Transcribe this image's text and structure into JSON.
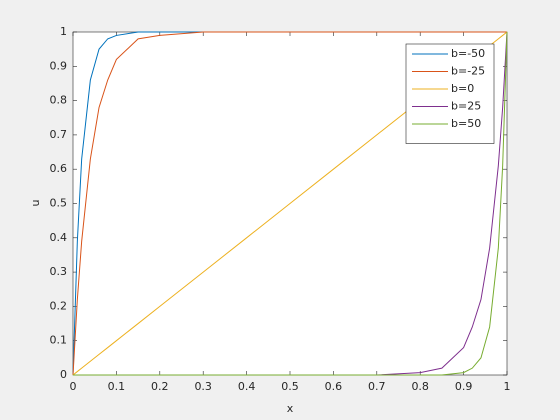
{
  "chart_data": {
    "type": "line",
    "xlabel": "x",
    "ylabel": "u",
    "x": [
      0,
      0.01,
      0.02,
      0.04,
      0.06,
      0.08,
      0.1,
      0.15,
      0.2,
      0.3,
      0.4,
      0.5,
      0.6,
      0.7,
      0.8,
      0.85,
      0.9,
      0.92,
      0.94,
      0.96,
      0.98,
      0.99,
      1
    ],
    "series": [
      {
        "name": "b=-50",
        "color": "#0072bd",
        "values": [
          0,
          0.39,
          0.63,
          0.86,
          0.95,
          0.98,
          0.99,
          1,
          1,
          1,
          1,
          1,
          1,
          1,
          1,
          1,
          1,
          1,
          1,
          1,
          1,
          1,
          1
        ]
      },
      {
        "name": "b=-25",
        "color": "#d95319",
        "values": [
          0,
          0.22,
          0.39,
          0.63,
          0.78,
          0.86,
          0.92,
          0.98,
          0.99,
          1,
          1,
          1,
          1,
          1,
          1,
          1,
          1,
          1,
          1,
          1,
          1,
          1,
          1
        ]
      },
      {
        "name": "b=0",
        "color": "#edb120",
        "values": [
          0,
          0.01,
          0.02,
          0.04,
          0.06,
          0.08,
          0.1,
          0.15,
          0.2,
          0.3,
          0.4,
          0.5,
          0.6,
          0.7,
          0.8,
          0.85,
          0.9,
          0.92,
          0.94,
          0.96,
          0.98,
          0.99,
          1
        ]
      },
      {
        "name": "b=25",
        "color": "#7e2f8e",
        "values": [
          0,
          0,
          0,
          0,
          0,
          0,
          0,
          0,
          0,
          0,
          0,
          0,
          0,
          0,
          0.007,
          0.02,
          0.08,
          0.14,
          0.22,
          0.37,
          0.61,
          0.78,
          1
        ]
      },
      {
        "name": "b=50",
        "color": "#77ac30",
        "values": [
          0,
          0,
          0,
          0,
          0,
          0,
          0,
          0,
          0,
          0,
          0,
          0,
          0,
          0,
          0,
          0,
          0.007,
          0.02,
          0.05,
          0.14,
          0.37,
          0.61,
          1
        ]
      }
    ],
    "xlim": [
      0,
      1
    ],
    "ylim": [
      0,
      1
    ],
    "xticks": [
      0,
      0.1,
      0.2,
      0.3,
      0.4,
      0.5,
      0.6,
      0.7,
      0.8,
      0.9,
      1
    ],
    "yticks": [
      0,
      0.1,
      0.2,
      0.3,
      0.4,
      0.5,
      0.6,
      0.7,
      0.8,
      0.9,
      1
    ],
    "grid": false,
    "legend": "northeast"
  }
}
